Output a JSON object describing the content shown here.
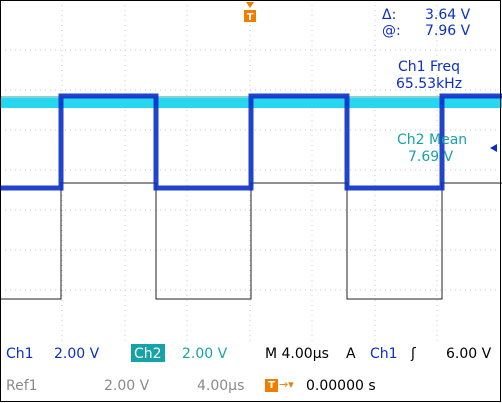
{
  "cursor": {
    "delta_symbol": "Δ:",
    "delta_value": "3.64 V",
    "at_symbol": "@:",
    "at_value": "7.96 V"
  },
  "trigger_marker": "T",
  "measurements": {
    "ch1_freq_label": "Ch1 Freq",
    "ch1_freq_value": "65.53kHz",
    "ch2_mean_label": "Ch2 Mean",
    "ch2_mean_value": "7.69 V"
  },
  "status": {
    "ch1_label": "Ch1",
    "ch1_scale": "2.00 V",
    "ch2_label": "Ch2",
    "ch2_scale": "2.00 V",
    "timebase": "M 4.00µs",
    "trigger_mode": "A",
    "trigger_source": "Ch1",
    "trigger_slope": "ʃ",
    "trigger_level": "6.00 V",
    "ref1_label": "Ref1",
    "ref1_scale": "2.00 V",
    "ref1_time": "4.00µs",
    "trigger_pos_icon": "T",
    "trigger_pos_arrow": "→▾",
    "trigger_pos_value": "0.00000 s"
  },
  "colors": {
    "ch1": "#0a2fc8",
    "ch2": "#16a3a8",
    "ref": "#8a8a8a",
    "trigger": "#f07d00"
  }
}
